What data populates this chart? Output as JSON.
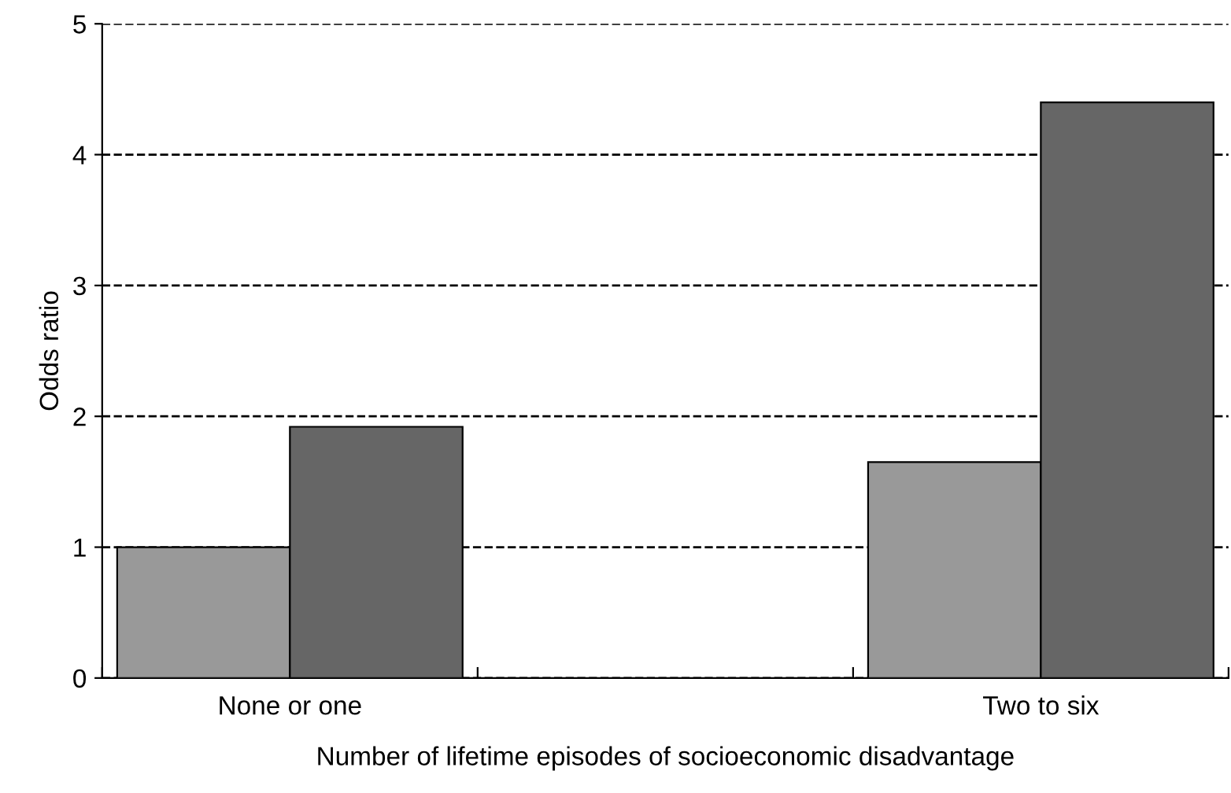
{
  "chart_data": {
    "type": "bar",
    "xlabel": "Number of lifetime episodes of socioeconomic disadvantage",
    "ylabel": "Odds ratio",
    "categories": [
      "None or one",
      null,
      "Two to six"
    ],
    "series": [
      {
        "color": "#999999",
        "values": [
          1.0,
          null,
          1.65
        ]
      },
      {
        "color": "#666666",
        "values": [
          1.92,
          null,
          4.4
        ]
      }
    ],
    "ylim": [
      0,
      5
    ],
    "yticks": [
      0,
      1,
      2,
      3,
      4,
      5
    ],
    "grid": "y",
    "line_style": "dashed"
  }
}
